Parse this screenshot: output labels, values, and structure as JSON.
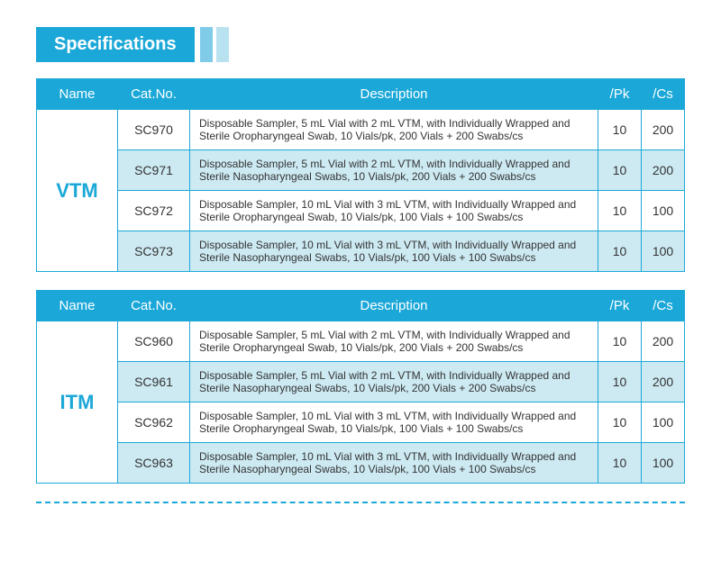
{
  "header": {
    "title": "Specifications"
  },
  "colors": {
    "primary": "#1ba8d8",
    "altRow": "#cdeaf3",
    "lightBar1": "#7fcbe8",
    "lightBar2": "#b8e2f0",
    "text": "#333333",
    "white": "#ffffff"
  },
  "columns": {
    "name": "Name",
    "cat": "Cat.No.",
    "desc": "Description",
    "pk": "/Pk",
    "cs": "/Cs"
  },
  "tables": [
    {
      "name": "VTM",
      "rows": [
        {
          "cat": "SC970",
          "desc": "Disposable Sampler, 5 mL Vial with 2 mL VTM, with Individually Wrapped and Sterile Oropharyngeal Swab, 10 Vials/pk, 200 Vials + 200 Swabs/cs",
          "pk": "10",
          "cs": "200"
        },
        {
          "cat": "SC971",
          "desc": "Disposable Sampler, 5 mL Vial with 2 mL VTM, with Individually Wrapped and Sterile Nasopharyngeal Swabs, 10 Vials/pk, 200 Vials + 200 Swabs/cs",
          "pk": "10",
          "cs": "200"
        },
        {
          "cat": "SC972",
          "desc": "Disposable Sampler, 10 mL Vial with 3 mL VTM, with Individually Wrapped and Sterile Oropharyngeal Swab, 10 Vials/pk, 100 Vials + 100 Swabs/cs",
          "pk": "10",
          "cs": "100"
        },
        {
          "cat": "SC973",
          "desc": "Disposable Sampler, 10 mL Vial with 3 mL VTM, with Individually Wrapped and Sterile Nasopharyngeal Swabs, 10 Vials/pk, 100 Vials + 100 Swabs/cs",
          "pk": "10",
          "cs": "100"
        }
      ]
    },
    {
      "name": "ITM",
      "rows": [
        {
          "cat": "SC960",
          "desc": "Disposable Sampler, 5 mL Vial with 2 mL VTM, with Individually Wrapped and Sterile Oropharyngeal Swab, 10 Vials/pk, 200 Vials + 200 Swabs/cs",
          "pk": "10",
          "cs": "200"
        },
        {
          "cat": "SC961",
          "desc": "Disposable Sampler, 5 mL Vial with 2 mL VTM, with Individually Wrapped and Sterile Nasopharyngeal Swabs, 10 Vials/pk, 200 Vials + 200 Swabs/cs",
          "pk": "10",
          "cs": "200"
        },
        {
          "cat": "SC962",
          "desc": "Disposable Sampler, 10 mL Vial with 3 mL VTM, with Individually Wrapped and Sterile Oropharyngeal Swab, 10 Vials/pk, 100 Vials + 100 Swabs/cs",
          "pk": "10",
          "cs": "100"
        },
        {
          "cat": "SC963",
          "desc": "Disposable Sampler, 10 mL Vial with 3 mL VTM, with Individually Wrapped and Sterile Nasopharyngeal Swabs, 10 Vials/pk, 100 Vials + 100 Swabs/cs",
          "pk": "10",
          "cs": "100"
        }
      ]
    }
  ]
}
